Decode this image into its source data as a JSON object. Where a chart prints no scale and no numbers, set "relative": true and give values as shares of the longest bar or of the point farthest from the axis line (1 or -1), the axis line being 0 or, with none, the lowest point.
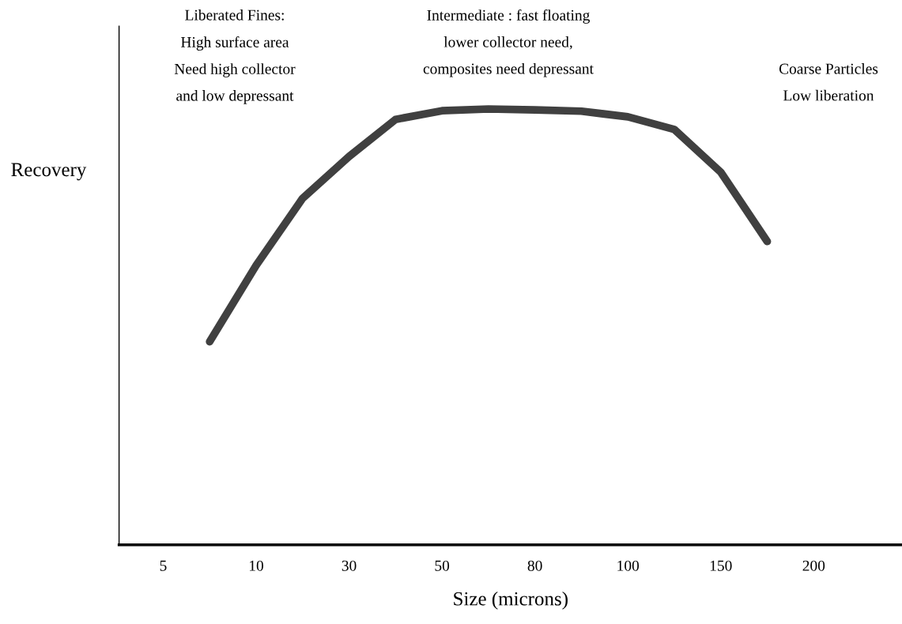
{
  "chart_data": {
    "type": "line",
    "relative": true,
    "xlabel": "Size (microns)",
    "ylabel": "Recovery",
    "categories": [
      "5",
      null,
      "10",
      null,
      "30",
      null,
      "50",
      null,
      "80",
      null,
      "100",
      null,
      "150",
      null,
      "200"
    ],
    "series": [
      {
        "color": "#404040",
        "values": [
          null,
          0.466,
          0.641,
          0.795,
          0.891,
          0.976,
          0.996,
          1,
          0.998,
          0.995,
          0.982,
          0.953,
          0.855,
          0.696,
          null
        ]
      }
    ],
    "annotations": [
      "Liberated Fines:\nHigh surface area\nNeed high collector\nand low depressant",
      "Intermediate : fast floating\nlower collector need,\ncomposites need depressant",
      "Coarse Particles\nLow liberation"
    ],
    "grid": false,
    "legend": false,
    "marker": "none",
    "line_style": "solid"
  }
}
